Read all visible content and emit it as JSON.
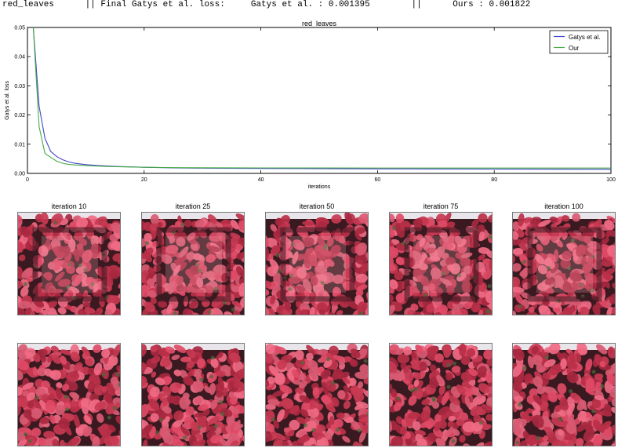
{
  "header": {
    "line": "red_leaves      || Final Gatys et al. loss:     Gatys et al. : 0.001395        ||      Ours : 0.001822"
  },
  "chart_data": {
    "type": "line",
    "title": "red_leaves",
    "xlabel": "iterations",
    "ylabel": "Gatys et al. loss",
    "xlim": [
      0,
      100
    ],
    "ylim": [
      0,
      0.05
    ],
    "xticks": [
      0,
      20,
      40,
      60,
      80,
      100
    ],
    "yticks": [
      0.0,
      0.01,
      0.02,
      0.03,
      0.04,
      0.05
    ],
    "ytick_labels": [
      "0.00",
      "0.01",
      "0.02",
      "0.03",
      "0.04",
      "0.05"
    ],
    "legend_position": "top-right",
    "series": [
      {
        "name": "Gatys et al.",
        "color": "#4444cc",
        "x": [
          1,
          2,
          3,
          4,
          5,
          6,
          7,
          8,
          10,
          12,
          15,
          20,
          25,
          30,
          40,
          50,
          60,
          70,
          80,
          90,
          100
        ],
        "y": [
          0.05,
          0.023,
          0.012,
          0.0075,
          0.0058,
          0.0047,
          0.004,
          0.0035,
          0.003,
          0.0027,
          0.0024,
          0.0021,
          0.0019,
          0.0018,
          0.0017,
          0.00163,
          0.00157,
          0.00152,
          0.00148,
          0.00144,
          0.001395
        ]
      },
      {
        "name": "Our",
        "color": "#44aa44",
        "x": [
          1,
          2,
          3,
          4,
          5,
          6,
          7,
          8,
          10,
          12,
          15,
          20,
          25,
          30,
          40,
          50,
          60,
          70,
          80,
          90,
          100
        ],
        "y": [
          0.05,
          0.016,
          0.0068,
          0.0055,
          0.0042,
          0.0035,
          0.0031,
          0.0029,
          0.0027,
          0.0025,
          0.0023,
          0.0021,
          0.00198,
          0.00192,
          0.00188,
          0.00186,
          0.00185,
          0.00184,
          0.00183,
          0.00183,
          0.001822
        ]
      }
    ]
  },
  "gallery": {
    "captions": [
      "iteration 10",
      "iteration 25",
      "iteration 50",
      "iteration 75",
      "iteration 100"
    ],
    "leaf_colors": [
      "#c83a52",
      "#e04a66",
      "#a82840",
      "#d85a72",
      "#b83048",
      "#f06a84"
    ],
    "shadow_color": "#3a1a20",
    "wall_color": "#e8e6ea",
    "green_color": "#4a6a3a"
  }
}
